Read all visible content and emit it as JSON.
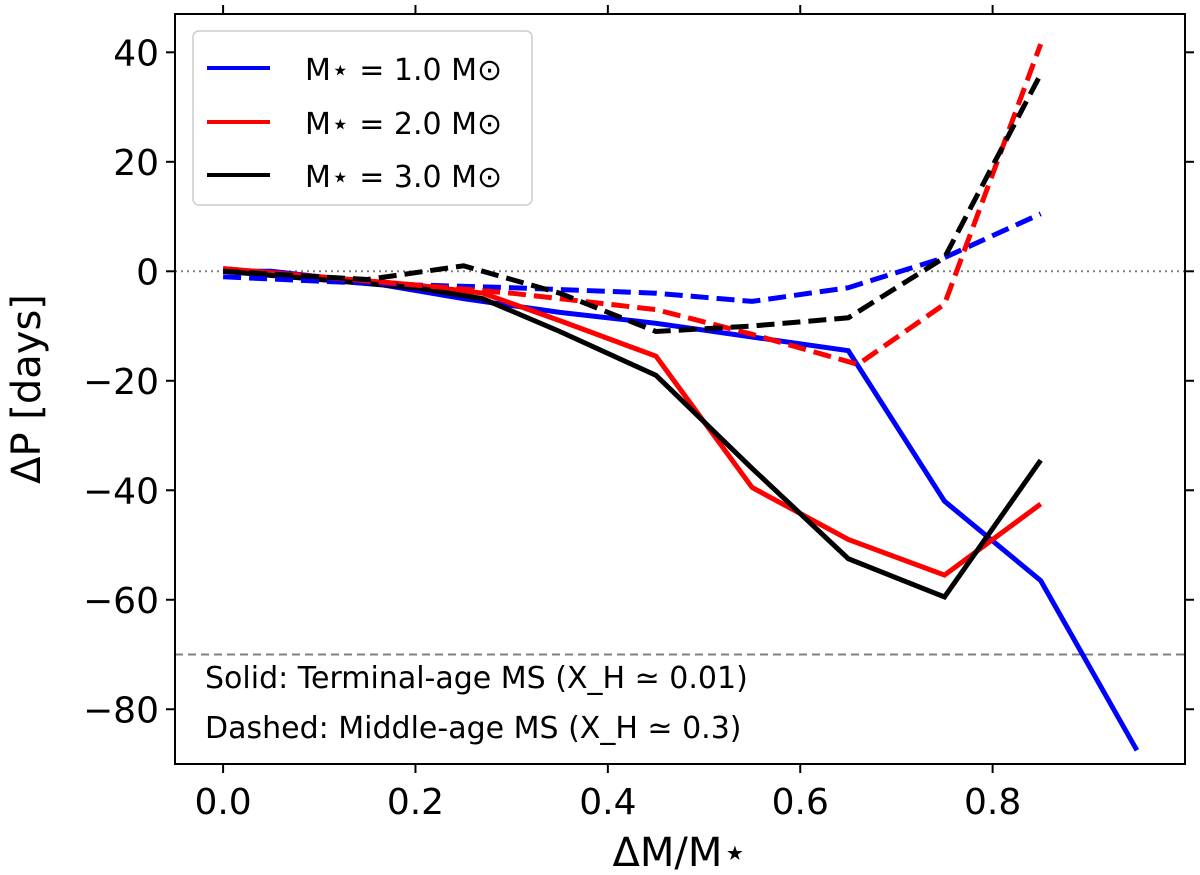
{
  "chart_data": {
    "type": "line",
    "xlabel": "ΔM/M⋆",
    "ylabel": "ΔP [days]",
    "xlim": [
      -0.05,
      1.0
    ],
    "ylim": [
      -90,
      47
    ],
    "x_ticks": [
      0.0,
      0.2,
      0.4,
      0.6,
      0.8
    ],
    "x_tick_labels": [
      "0.0",
      "0.2",
      "0.4",
      "0.6",
      "0.8"
    ],
    "y_ticks": [
      -80,
      -60,
      -40,
      -20,
      0,
      20,
      40
    ],
    "y_tick_labels": [
      "−80",
      "−60",
      "−40",
      "−20",
      "0",
      "20",
      "40"
    ],
    "reference_lines": [
      {
        "y": 0,
        "style": "dotted",
        "color": "#808080"
      },
      {
        "y": -70,
        "style": "dashed",
        "color": "#808080"
      }
    ],
    "legend": {
      "placement": "top-left",
      "entries": [
        {
          "label": "M⋆ = 1.0 M⊙",
          "color": "#0000ff"
        },
        {
          "label": "M⋆ = 2.0 M⊙",
          "color": "#ff0000"
        },
        {
          "label": "M⋆ = 3.0 M⊙",
          "color": "#000000"
        }
      ]
    },
    "annotations": [
      "Solid: Terminal-age MS (X_H ≃ 0.01)",
      "Dashed: Middle-age MS (X_H ≃ 0.3)"
    ],
    "series": [
      {
        "name": "1.0 Msun terminal-age",
        "mass": "1.0",
        "style": "solid",
        "color": "#0000ff",
        "x": [
          0.0,
          0.05,
          0.15,
          0.25,
          0.35,
          0.45,
          0.55,
          0.65,
          0.75,
          0.85,
          0.95
        ],
        "y": [
          0.0,
          0.0,
          -2.0,
          -5.0,
          -7.5,
          -9.5,
          -12.0,
          -14.5,
          -42.0,
          -56.5,
          -87.5
        ]
      },
      {
        "name": "2.0 Msun terminal-age",
        "mass": "2.0",
        "style": "solid",
        "color": "#ff0000",
        "x": [
          0.0,
          0.1,
          0.2,
          0.27,
          0.35,
          0.45,
          0.55,
          0.65,
          0.75,
          0.85
        ],
        "y": [
          0.5,
          -1.0,
          -2.5,
          -4.0,
          -9.0,
          -15.5,
          -39.5,
          -49.0,
          -55.5,
          -42.5
        ]
      },
      {
        "name": "3.0 Msun terminal-age",
        "mass": "3.0",
        "style": "solid",
        "color": "#000000",
        "x": [
          0.0,
          0.1,
          0.2,
          0.27,
          0.35,
          0.45,
          0.55,
          0.65,
          0.75,
          0.85
        ],
        "y": [
          0.0,
          -1.5,
          -3.0,
          -5.0,
          -11.0,
          -19.0,
          -36.0,
          -52.5,
          -59.5,
          -34.5
        ]
      },
      {
        "name": "1.0 Msun middle-age",
        "mass": "1.0",
        "style": "dashed",
        "color": "#0000ff",
        "x": [
          0.0,
          0.1,
          0.2,
          0.3,
          0.45,
          0.55,
          0.65,
          0.75,
          0.85
        ],
        "y": [
          -1.0,
          -1.8,
          -2.5,
          -3.0,
          -4.0,
          -5.5,
          -3.0,
          2.5,
          10.5
        ]
      },
      {
        "name": "2.0 Msun middle-age",
        "mass": "2.0",
        "style": "dashed",
        "color": "#ff0000",
        "x": [
          0.0,
          0.1,
          0.2,
          0.3,
          0.45,
          0.55,
          0.66,
          0.75,
          0.85
        ],
        "y": [
          0.5,
          -1.0,
          -2.5,
          -4.0,
          -7.0,
          -11.5,
          -17.0,
          -6.0,
          41.5
        ]
      },
      {
        "name": "3.0 Msun middle-age",
        "mass": "3.0",
        "style": "dashed",
        "color": "#000000",
        "x": [
          0.0,
          0.15,
          0.25,
          0.35,
          0.45,
          0.55,
          0.65,
          0.75,
          0.85
        ],
        "y": [
          0.0,
          -1.5,
          1.0,
          -4.0,
          -11.0,
          -10.0,
          -8.5,
          2.5,
          36.0
        ]
      }
    ]
  }
}
